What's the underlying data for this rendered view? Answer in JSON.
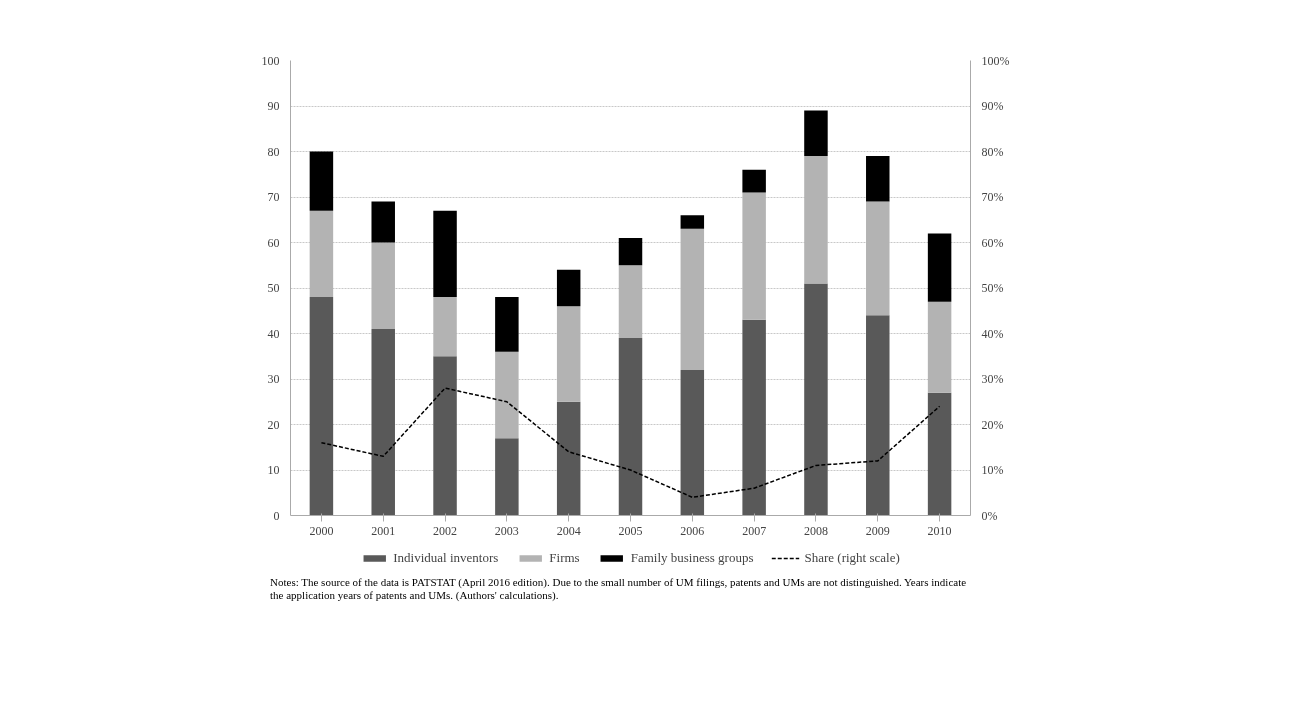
{
  "chart_data": {
    "type": "bar",
    "stacked": true,
    "categories": [
      "2000",
      "2001",
      "2002",
      "2003",
      "2004",
      "2005",
      "2006",
      "2007",
      "2008",
      "2009",
      "2010"
    ],
    "series": [
      {
        "name": "Individual inventors",
        "color": "#595959",
        "values": [
          48,
          41,
          35,
          17,
          25,
          39,
          32,
          43,
          51,
          44,
          27
        ]
      },
      {
        "name": "Firms",
        "color": "#b3b3b3",
        "values": [
          19,
          19,
          13,
          19,
          21,
          16,
          31,
          28,
          28,
          25,
          20
        ]
      },
      {
        "name": "Family business groups",
        "color": "#000000",
        "values": [
          13,
          9,
          19,
          12,
          8,
          6,
          3,
          5,
          10,
          10,
          15
        ]
      },
      {
        "name": "Share (right scale)",
        "type": "line",
        "axis": "y2",
        "color": "#000000",
        "line_style": "dashed",
        "values": [
          16,
          13,
          28,
          25,
          14,
          10,
          4,
          6,
          11,
          12,
          24
        ]
      }
    ],
    "ylim": [
      0,
      100
    ],
    "yticks": [
      0,
      10,
      20,
      30,
      40,
      50,
      60,
      70,
      80,
      90,
      100
    ],
    "y2lim": [
      0,
      100
    ],
    "y2ticks": [
      {
        "value": 0,
        "label": "0%"
      },
      {
        "value": 10,
        "label": "10%"
      },
      {
        "value": 20,
        "label": "20%"
      },
      {
        "value": 30,
        "label": "30%"
      },
      {
        "value": 40,
        "label": "40%"
      },
      {
        "value": 50,
        "label": "50%"
      },
      {
        "value": 60,
        "label": "60%"
      },
      {
        "value": 70,
        "label": "70%"
      },
      {
        "value": 80,
        "label": "80%"
      },
      {
        "value": 90,
        "label": "90%"
      },
      {
        "value": 100,
        "label": "100%"
      }
    ],
    "grid": "y",
    "legend": "bottom",
    "annotations": [
      "Notes: The source of the data is PATSTAT (April 2016 edition). Due to the small number of UM filings, patents and UMs are not distinguished. Years indicate the application years of patents and UMs. (Authors' calculations)."
    ]
  }
}
